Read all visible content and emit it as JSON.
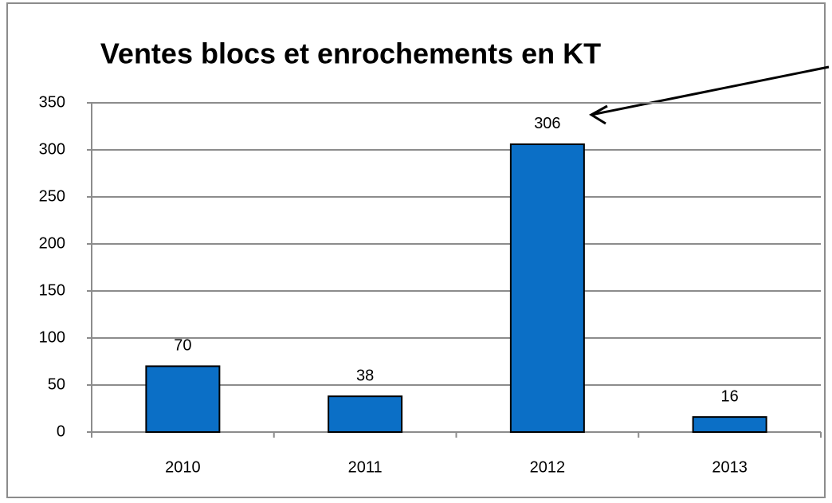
{
  "chart_data": {
    "type": "bar",
    "title": "Ventes blocs et enrochements en KT",
    "categories": [
      "2010",
      "2011",
      "2012",
      "2013"
    ],
    "values": [
      70,
      38,
      306,
      16
    ],
    "color": "#0b6fc6",
    "ylim": [
      0,
      350
    ],
    "yticks": [
      0,
      50,
      100,
      150,
      200,
      250,
      300,
      350
    ],
    "grid": true
  }
}
